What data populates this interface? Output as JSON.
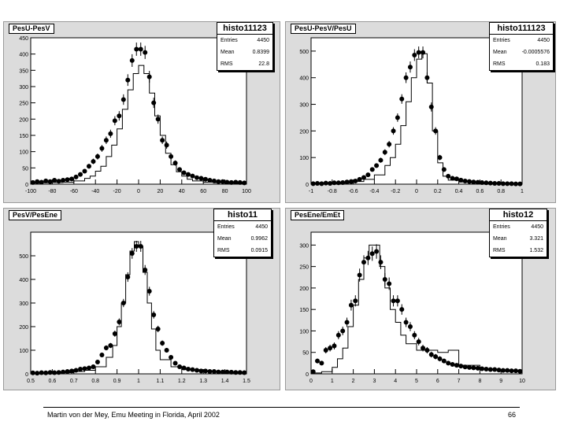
{
  "footer": {
    "text": "Martin von der Mey, Emu Meeting in Florida, April 2002",
    "page": "66"
  },
  "chart_data": [
    {
      "type": "histogram",
      "pad_title": "PesU-PesV",
      "title": "histo11123",
      "stats": [
        {
          "label": "Entries",
          "value": "4450"
        },
        {
          "label": "Mean",
          "value": "0.8399"
        },
        {
          "label": "RMS",
          "value": "22.8"
        }
      ],
      "xlim": [
        -100,
        100
      ],
      "ylim": [
        0,
        450
      ],
      "xticks": [
        -100,
        -80,
        -60,
        -40,
        -20,
        0,
        20,
        40,
        60,
        80,
        100
      ],
      "yticks": [
        0,
        50,
        100,
        150,
        200,
        250,
        300,
        350,
        400,
        450
      ],
      "xtick_labels": [
        "-100",
        "-80",
        "-60",
        "-40",
        "-20",
        "0",
        "20",
        "40",
        "60",
        "80",
        "100"
      ],
      "ytick_labels": [
        "0",
        "50",
        "100",
        "150",
        "200",
        "250",
        "300",
        "350",
        "400",
        "450"
      ],
      "line_series": {
        "x": [
          -100,
          -90,
          -80,
          -70,
          -60,
          -50,
          -45,
          -40,
          -35,
          -30,
          -25,
          -20,
          -15,
          -10,
          -5,
          0,
          5,
          10,
          15,
          20,
          25,
          30,
          35,
          40,
          45,
          50,
          60,
          70,
          80,
          90,
          100
        ],
        "y": [
          3,
          4,
          5,
          6,
          10,
          18,
          25,
          40,
          55,
          85,
          120,
          170,
          230,
          290,
          340,
          365,
          340,
          280,
          210,
          150,
          95,
          60,
          38,
          25,
          15,
          10,
          6,
          4,
          3,
          2,
          1
        ]
      },
      "points": {
        "x": [
          -98,
          -94,
          -90,
          -86,
          -82,
          -78,
          -74,
          -70,
          -66,
          -62,
          -58,
          -54,
          -50,
          -46,
          -42,
          -38,
          -34,
          -30,
          -26,
          -22,
          -18,
          -14,
          -10,
          -6,
          -2,
          2,
          6,
          10,
          14,
          18,
          22,
          26,
          30,
          34,
          38,
          42,
          46,
          50,
          54,
          58,
          62,
          66,
          70,
          74,
          78,
          82,
          86,
          90,
          94,
          98
        ],
        "y": [
          5,
          8,
          6,
          10,
          8,
          12,
          9,
          12,
          14,
          16,
          22,
          30,
          40,
          55,
          70,
          85,
          110,
          135,
          155,
          195,
          210,
          260,
          320,
          380,
          415,
          415,
          405,
          330,
          250,
          200,
          135,
          120,
          85,
          65,
          45,
          35,
          30,
          25,
          20,
          18,
          15,
          12,
          10,
          8,
          8,
          6,
          5,
          6,
          5,
          4
        ]
      }
    },
    {
      "type": "histogram",
      "pad_title": "PesU-PesV/PesU",
      "title": "histo111123",
      "stats": [
        {
          "label": "Entries",
          "value": "4450"
        },
        {
          "label": "Mean",
          "value": "-0.0005576"
        },
        {
          "label": "RMS",
          "value": "0.183"
        }
      ],
      "xlim": [
        -1,
        1
      ],
      "ylim": [
        0,
        550
      ],
      "xticks": [
        -1,
        -0.8,
        -0.6,
        -0.4,
        -0.2,
        0,
        0.2,
        0.4,
        0.6,
        0.8,
        1
      ],
      "yticks": [
        0,
        100,
        200,
        300,
        400,
        500
      ],
      "xtick_labels": [
        "-1",
        "-0.8",
        "-0.6",
        "-0.4",
        "-0.2",
        "0",
        "0.2",
        "0.4",
        "0.6",
        "0.8",
        "1"
      ],
      "ytick_labels": [
        "0",
        "100",
        "200",
        "300",
        "400",
        "500"
      ],
      "line_series": {
        "x": [
          -1,
          -0.8,
          -0.6,
          -0.5,
          -0.4,
          -0.3,
          -0.25,
          -0.2,
          -0.15,
          -0.1,
          -0.05,
          0,
          0.05,
          0.1,
          0.15,
          0.2,
          0.25,
          0.3,
          0.4,
          0.5,
          0.6,
          0.8,
          1
        ],
        "y": [
          2,
          4,
          10,
          18,
          35,
          70,
          100,
          150,
          220,
          310,
          400,
          470,
          490,
          380,
          200,
          80,
          30,
          15,
          8,
          5,
          3,
          2,
          1
        ]
      },
      "points": {
        "x": [
          -0.98,
          -0.94,
          -0.9,
          -0.86,
          -0.82,
          -0.78,
          -0.74,
          -0.7,
          -0.66,
          -0.62,
          -0.58,
          -0.54,
          -0.5,
          -0.46,
          -0.42,
          -0.38,
          -0.34,
          -0.3,
          -0.26,
          -0.22,
          -0.18,
          -0.14,
          -0.1,
          -0.06,
          -0.02,
          0.02,
          0.06,
          0.1,
          0.14,
          0.18,
          0.22,
          0.26,
          0.3,
          0.34,
          0.38,
          0.42,
          0.46,
          0.5,
          0.54,
          0.58,
          0.62,
          0.66,
          0.7,
          0.74,
          0.78,
          0.82,
          0.86,
          0.9,
          0.94,
          0.98
        ],
        "y": [
          2,
          3,
          2,
          4,
          3,
          5,
          5,
          6,
          8,
          10,
          12,
          18,
          25,
          35,
          55,
          70,
          90,
          120,
          150,
          200,
          250,
          320,
          400,
          440,
          485,
          495,
          495,
          400,
          290,
          200,
          100,
          55,
          30,
          22,
          20,
          15,
          12,
          10,
          8,
          7,
          6,
          5,
          4,
          3,
          3,
          2,
          2,
          2,
          1,
          1
        ]
      }
    },
    {
      "type": "histogram",
      "pad_title": "PesV/PesEne",
      "title": "histo11",
      "stats": [
        {
          "label": "Entries",
          "value": "4450"
        },
        {
          "label": "Mean",
          "value": "0.9962"
        },
        {
          "label": "RMS",
          "value": "0.0915"
        }
      ],
      "xlim": [
        0.5,
        1.5
      ],
      "ylim": [
        0,
        600
      ],
      "xticks": [
        0.5,
        0.6,
        0.7,
        0.8,
        0.9,
        1,
        1.1,
        1.2,
        1.3,
        1.4,
        1.5
      ],
      "yticks": [
        0,
        100,
        200,
        300,
        400,
        500
      ],
      "xtick_labels": [
        "0.5",
        "0.6",
        "0.7",
        "0.8",
        "0.9",
        "1",
        "1.1",
        "1.2",
        "1.3",
        "1.4",
        "1.5"
      ],
      "ytick_labels": [
        "0",
        "100",
        "200",
        "300",
        "400",
        "500"
      ],
      "line_series": {
        "x": [
          0.5,
          0.6,
          0.7,
          0.75,
          0.8,
          0.85,
          0.88,
          0.9,
          0.92,
          0.94,
          0.96,
          0.98,
          1,
          1.02,
          1.04,
          1.06,
          1.08,
          1.1,
          1.15,
          1.2,
          1.3,
          1.4,
          1.5
        ],
        "y": [
          3,
          5,
          10,
          15,
          30,
          70,
          120,
          200,
          300,
          420,
          520,
          560,
          540,
          430,
          300,
          190,
          100,
          60,
          30,
          18,
          8,
          5,
          3
        ]
      },
      "points": {
        "x": [
          0.51,
          0.53,
          0.55,
          0.57,
          0.59,
          0.61,
          0.63,
          0.65,
          0.67,
          0.69,
          0.71,
          0.73,
          0.75,
          0.77,
          0.79,
          0.81,
          0.83,
          0.85,
          0.87,
          0.89,
          0.91,
          0.93,
          0.95,
          0.97,
          0.99,
          1.01,
          1.03,
          1.05,
          1.07,
          1.09,
          1.11,
          1.13,
          1.15,
          1.17,
          1.19,
          1.21,
          1.23,
          1.25,
          1.27,
          1.29,
          1.31,
          1.33,
          1.35,
          1.37,
          1.39,
          1.41,
          1.43,
          1.45,
          1.47,
          1.49
        ],
        "y": [
          4,
          3,
          5,
          4,
          6,
          5,
          6,
          8,
          10,
          12,
          15,
          20,
          22,
          25,
          30,
          50,
          80,
          110,
          120,
          170,
          220,
          300,
          410,
          510,
          540,
          540,
          440,
          350,
          250,
          190,
          130,
          100,
          70,
          45,
          30,
          25,
          20,
          18,
          15,
          12,
          12,
          10,
          10,
          8,
          8,
          8,
          7,
          6,
          6,
          5
        ]
      }
    },
    {
      "type": "histogram",
      "pad_title": "PesEne/EmEt",
      "title": "histo12",
      "stats": [
        {
          "label": "Entries",
          "value": "4450"
        },
        {
          "label": "Mean",
          "value": "3.321"
        },
        {
          "label": "RMS",
          "value": "1.532"
        }
      ],
      "xlim": [
        0,
        10
      ],
      "ylim": [
        0,
        330
      ],
      "xticks": [
        0,
        1,
        2,
        3,
        4,
        5,
        6,
        7,
        8,
        9,
        10
      ],
      "yticks": [
        0,
        50,
        100,
        150,
        200,
        250,
        300
      ],
      "xtick_labels": [
        "0",
        "1",
        "2",
        "3",
        "4",
        "5",
        "6",
        "7",
        "8",
        "9",
        "10"
      ],
      "ytick_labels": [
        "0",
        "50",
        "100",
        "150",
        "200",
        "250",
        "300"
      ],
      "line_series": {
        "x": [
          0,
          0.5,
          1,
          1.25,
          1.5,
          1.75,
          2,
          2.25,
          2.5,
          2.75,
          3,
          3.25,
          3.5,
          3.75,
          4,
          4.25,
          4.5,
          5,
          5.5,
          6,
          6.5,
          7,
          8,
          9,
          10
        ],
        "y": [
          2,
          5,
          15,
          35,
          60,
          110,
          160,
          220,
          270,
          300,
          300,
          250,
          200,
          150,
          120,
          90,
          70,
          55,
          55,
          50,
          55,
          20,
          10,
          6,
          4
        ]
      },
      "points": {
        "x": [
          0.1,
          0.3,
          0.5,
          0.7,
          0.9,
          1.1,
          1.3,
          1.5,
          1.7,
          1.9,
          2.1,
          2.3,
          2.5,
          2.7,
          2.9,
          3.1,
          3.3,
          3.5,
          3.7,
          3.9,
          4.1,
          4.3,
          4.5,
          4.7,
          4.9,
          5.1,
          5.3,
          5.5,
          5.7,
          5.9,
          6.1,
          6.3,
          6.5,
          6.7,
          6.9,
          7.1,
          7.3,
          7.5,
          7.7,
          7.9,
          8.1,
          8.3,
          8.5,
          8.7,
          8.9,
          9.1,
          9.3,
          9.5,
          9.7,
          9.9
        ],
        "y": [
          5,
          30,
          25,
          55,
          60,
          65,
          90,
          100,
          120,
          160,
          170,
          230,
          260,
          270,
          280,
          285,
          260,
          220,
          210,
          170,
          170,
          150,
          120,
          110,
          90,
          75,
          60,
          55,
          45,
          40,
          35,
          30,
          25,
          22,
          20,
          18,
          16,
          15,
          14,
          13,
          12,
          11,
          10,
          10,
          9,
          8,
          8,
          7,
          7,
          6
        ]
      }
    }
  ]
}
